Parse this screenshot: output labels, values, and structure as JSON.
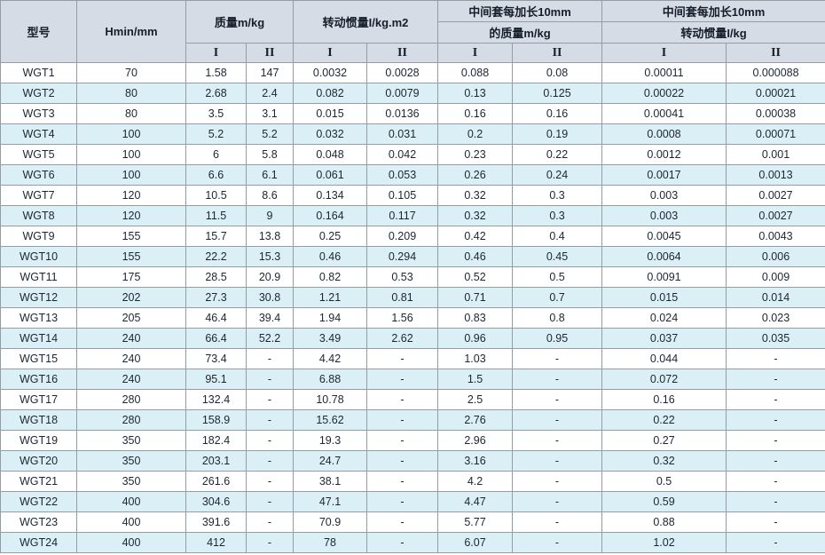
{
  "table": {
    "title_semantics": "WGT coupling specification table",
    "header": {
      "model": "型号",
      "hmin": "Hmin/mm",
      "mass_group": "质量m/kg",
      "inertia_group": "转动惯量I/kg.m2",
      "ext_mass_line1": "中间套每加长10mm",
      "ext_mass_line2": "的质量m/kg",
      "ext_inertia_line1": "中间套每加长10mm",
      "ext_inertia_line2": "转动惯量I/kg"
    },
    "subheads": [
      "I",
      "II",
      "I",
      "II",
      "I",
      "II",
      "I",
      "II"
    ],
    "rows": [
      [
        "WGT1",
        "70",
        "1.58",
        "147",
        "0.0032",
        "0.0028",
        "0.088",
        "0.08",
        "0.00011",
        "0.000088"
      ],
      [
        "WGT2",
        "80",
        "2.68",
        "2.4",
        "0.082",
        "0.0079",
        "0.13",
        "0.125",
        "0.00022",
        "0.00021"
      ],
      [
        "WGT3",
        "80",
        "3.5",
        "3.1",
        "0.015",
        "0.0136",
        "0.16",
        "0.16",
        "0.00041",
        "0.00038"
      ],
      [
        "WGT4",
        "100",
        "5.2",
        "5.2",
        "0.032",
        "0.031",
        "0.2",
        "0.19",
        "0.0008",
        "0.00071"
      ],
      [
        "WGT5",
        "100",
        "6",
        "5.8",
        "0.048",
        "0.042",
        "0.23",
        "0.22",
        "0.0012",
        "0.001"
      ],
      [
        "WGT6",
        "100",
        "6.6",
        "6.1",
        "0.061",
        "0.053",
        "0.26",
        "0.24",
        "0.0017",
        "0.0013"
      ],
      [
        "WGT7",
        "120",
        "10.5",
        "8.6",
        "0.134",
        "0.105",
        "0.32",
        "0.3",
        "0.003",
        "0.0027"
      ],
      [
        "WGT8",
        "120",
        "11.5",
        "9",
        "0.164",
        "0.117",
        "0.32",
        "0.3",
        "0.003",
        "0.0027"
      ],
      [
        "WGT9",
        "155",
        "15.7",
        "13.8",
        "0.25",
        "0.209",
        "0.42",
        "0.4",
        "0.0045",
        "0.0043"
      ],
      [
        "WGT10",
        "155",
        "22.2",
        "15.3",
        "0.46",
        "0.294",
        "0.46",
        "0.45",
        "0.0064",
        "0.006"
      ],
      [
        "WGT11",
        "175",
        "28.5",
        "20.9",
        "0.82",
        "0.53",
        "0.52",
        "0.5",
        "0.0091",
        "0.009"
      ],
      [
        "WGT12",
        "202",
        "27.3",
        "30.8",
        "1.21",
        "0.81",
        "0.71",
        "0.7",
        "0.015",
        "0.014"
      ],
      [
        "WGT13",
        "205",
        "46.4",
        "39.4",
        "1.94",
        "1.56",
        "0.83",
        "0.8",
        "0.024",
        "0.023"
      ],
      [
        "WGT14",
        "240",
        "66.4",
        "52.2",
        "3.49",
        "2.62",
        "0.96",
        "0.95",
        "0.037",
        "0.035"
      ],
      [
        "WGT15",
        "240",
        "73.4",
        "-",
        "4.42",
        "-",
        "1.03",
        "-",
        "0.044",
        "-"
      ],
      [
        "WGT16",
        "240",
        "95.1",
        "-",
        "6.88",
        "-",
        "1.5",
        "-",
        "0.072",
        "-"
      ],
      [
        "WGT17",
        "280",
        "132.4",
        "-",
        "10.78",
        "-",
        "2.5",
        "-",
        "0.16",
        "-"
      ],
      [
        "WGT18",
        "280",
        "158.9",
        "-",
        "15.62",
        "-",
        "2.76",
        "-",
        "0.22",
        "-"
      ],
      [
        "WGT19",
        "350",
        "182.4",
        "-",
        "19.3",
        "-",
        "2.96",
        "-",
        "0.27",
        "-"
      ],
      [
        "WGT20",
        "350",
        "203.1",
        "-",
        "24.7",
        "-",
        "3.16",
        "-",
        "0.32",
        "-"
      ],
      [
        "WGT21",
        "350",
        "261.6",
        "-",
        "38.1",
        "-",
        "4.2",
        "-",
        "0.5",
        "-"
      ],
      [
        "WGT22",
        "400",
        "304.6",
        "-",
        "47.1",
        "-",
        "4.47",
        "-",
        "0.59",
        "-"
      ],
      [
        "WGT23",
        "400",
        "391.6",
        "-",
        "70.9",
        "-",
        "5.77",
        "-",
        "0.88",
        "-"
      ],
      [
        "WGT24",
        "400",
        "412",
        "-",
        "78",
        "-",
        "6.07",
        "-",
        "1.02",
        "-"
      ]
    ]
  },
  "colors": {
    "header_bg": "#d5dce6",
    "row_alt": "#dbeff7",
    "border": "#949ca4",
    "text": "#1c2633"
  }
}
